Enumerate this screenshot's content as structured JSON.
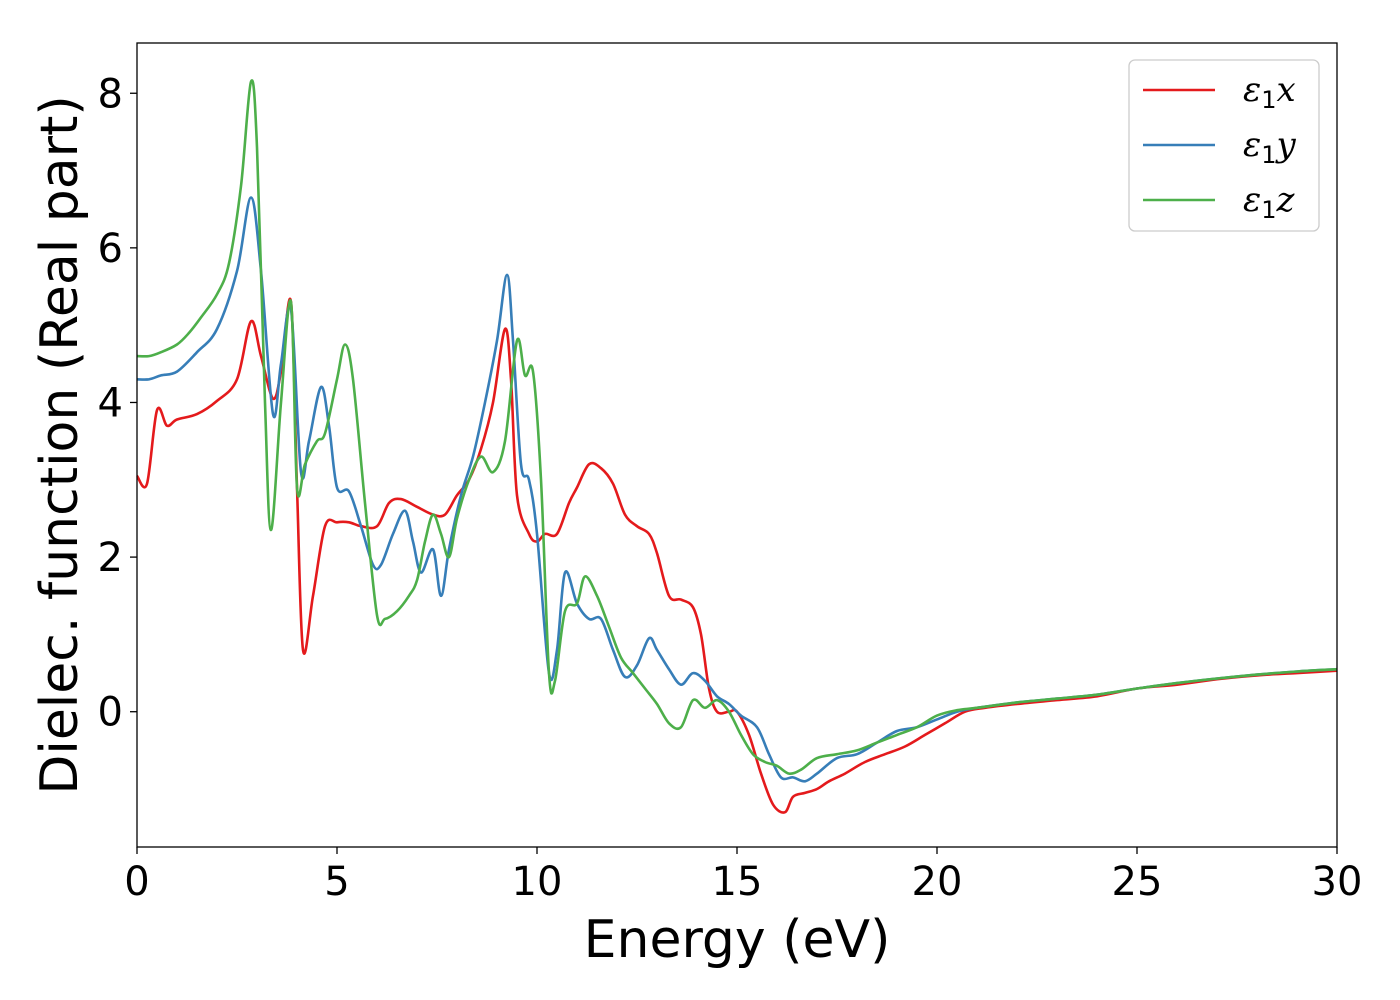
{
  "chart_data": {
    "type": "line",
    "title": "",
    "xlabel": "Energy (eV)",
    "ylabel": "Dielec. function (Real part)",
    "xlim": [
      0,
      30
    ],
    "ylim": [
      -1.75,
      8.65
    ],
    "xticks": [
      0,
      5,
      10,
      15,
      20,
      25,
      30
    ],
    "xtick_labels": [
      "0",
      "5",
      "10",
      "15",
      "20",
      "25",
      "30"
    ],
    "yticks": [
      0,
      2,
      4,
      6,
      8
    ],
    "ytick_labels": [
      "0",
      "2",
      "4",
      "6",
      "8"
    ],
    "grid": false,
    "legend_position": "top-right",
    "series": [
      {
        "name": "ε1x",
        "legend_symbol": "ε",
        "legend_sub": "1",
        "legend_axis": "x",
        "color": "#e41a1c",
        "x": [
          0,
          0.25,
          0.5,
          0.75,
          1.0,
          1.5,
          2.0,
          2.5,
          2.85,
          3.1,
          3.4,
          3.6,
          3.85,
          4.0,
          4.15,
          4.4,
          4.7,
          5.0,
          5.3,
          5.6,
          6.0,
          6.3,
          6.6,
          7.0,
          7.4,
          7.7,
          8.0,
          8.3,
          8.6,
          8.9,
          9.2,
          9.35,
          9.5,
          9.8,
          10.0,
          10.2,
          10.5,
          10.8,
          11.0,
          11.3,
          11.6,
          11.9,
          12.2,
          12.5,
          12.8,
          13.0,
          13.3,
          13.6,
          13.9,
          14.1,
          14.3,
          14.5,
          14.8,
          15.0,
          15.3,
          15.6,
          15.9,
          16.2,
          16.4,
          16.7,
          17.0,
          17.3,
          17.7,
          18.2,
          18.7,
          19.2,
          19.7,
          20.2,
          20.7,
          21.2,
          22.0,
          23.0,
          24.0,
          25.0,
          26.0,
          27.0,
          28.0,
          29.0,
          30.0
        ],
        "values": [
          3.05,
          2.95,
          3.9,
          3.7,
          3.78,
          3.85,
          4.02,
          4.3,
          5.05,
          4.6,
          4.05,
          4.4,
          5.3,
          2.9,
          0.8,
          1.5,
          2.4,
          2.45,
          2.45,
          2.4,
          2.4,
          2.7,
          2.75,
          2.65,
          2.55,
          2.55,
          2.8,
          3.0,
          3.4,
          4.0,
          4.95,
          4.3,
          2.8,
          2.3,
          2.2,
          2.3,
          2.3,
          2.7,
          2.9,
          3.2,
          3.15,
          2.95,
          2.55,
          2.4,
          2.3,
          2.05,
          1.5,
          1.45,
          1.35,
          1.0,
          0.3,
          0.0,
          0.0,
          0.0,
          -0.3,
          -0.8,
          -1.2,
          -1.3,
          -1.1,
          -1.05,
          -1.0,
          -0.9,
          -0.8,
          -0.65,
          -0.55,
          -0.45,
          -0.3,
          -0.15,
          0.0,
          0.05,
          0.1,
          0.15,
          0.2,
          0.3,
          0.35,
          0.42,
          0.47,
          0.5,
          0.53
        ]
      },
      {
        "name": "ε1y",
        "legend_symbol": "ε",
        "legend_sub": "1",
        "legend_axis": "y",
        "color": "#377eb8",
        "x": [
          0,
          0.3,
          0.6,
          1.0,
          1.5,
          2.0,
          2.5,
          2.85,
          3.1,
          3.4,
          3.6,
          3.85,
          4.1,
          4.3,
          4.6,
          4.8,
          5.0,
          5.3,
          5.6,
          5.9,
          6.1,
          6.4,
          6.7,
          6.9,
          7.1,
          7.4,
          7.6,
          7.8,
          8.1,
          8.4,
          8.7,
          9.0,
          9.25,
          9.4,
          9.6,
          9.8,
          10.0,
          10.3,
          10.5,
          10.7,
          11.0,
          11.3,
          11.6,
          11.9,
          12.2,
          12.5,
          12.8,
          13.0,
          13.3,
          13.6,
          13.9,
          14.2,
          14.5,
          14.8,
          15.1,
          15.5,
          15.8,
          16.1,
          16.4,
          16.7,
          17.0,
          17.5,
          18.0,
          18.5,
          19.0,
          19.5,
          20.0,
          20.5,
          21.0,
          22.0,
          23.0,
          24.0,
          25.0,
          26.0,
          27.0,
          28.0,
          29.0,
          30.0
        ],
        "values": [
          4.3,
          4.3,
          4.35,
          4.4,
          4.65,
          4.95,
          5.7,
          6.65,
          5.7,
          3.85,
          4.5,
          5.2,
          3.1,
          3.5,
          4.2,
          3.7,
          2.9,
          2.85,
          2.4,
          1.9,
          1.9,
          2.3,
          2.6,
          2.2,
          1.8,
          2.1,
          1.5,
          2.1,
          2.8,
          3.3,
          4.0,
          4.8,
          5.65,
          4.8,
          3.2,
          3.0,
          2.3,
          0.5,
          0.8,
          1.8,
          1.4,
          1.2,
          1.2,
          0.8,
          0.45,
          0.6,
          0.95,
          0.8,
          0.55,
          0.35,
          0.5,
          0.4,
          0.2,
          0.1,
          -0.05,
          -0.2,
          -0.55,
          -0.85,
          -0.85,
          -0.9,
          -0.8,
          -0.6,
          -0.55,
          -0.4,
          -0.25,
          -0.2,
          -0.1,
          0.0,
          0.05,
          0.12,
          0.17,
          0.22,
          0.3,
          0.37,
          0.43,
          0.48,
          0.52,
          0.55
        ]
      },
      {
        "name": "ε1z",
        "legend_symbol": "ε",
        "legend_sub": "1",
        "legend_axis": "z",
        "color": "#4daf4a",
        "x": [
          0,
          0.3,
          0.6,
          1.0,
          1.3,
          1.6,
          2.0,
          2.3,
          2.6,
          2.85,
          3.0,
          3.2,
          3.35,
          3.6,
          3.85,
          4.0,
          4.2,
          4.5,
          4.7,
          5.0,
          5.2,
          5.4,
          5.7,
          6.0,
          6.2,
          6.5,
          6.8,
          7.0,
          7.2,
          7.4,
          7.6,
          7.8,
          8.0,
          8.3,
          8.6,
          8.9,
          9.2,
          9.5,
          9.7,
          9.9,
          10.1,
          10.3,
          10.45,
          10.7,
          11.0,
          11.2,
          11.5,
          11.8,
          12.1,
          12.4,
          12.7,
          13.0,
          13.3,
          13.6,
          13.9,
          14.2,
          14.5,
          14.8,
          15.1,
          15.4,
          15.7,
          16.0,
          16.3,
          16.6,
          17.0,
          17.5,
          18.0,
          18.5,
          19.0,
          19.5,
          20.0,
          20.5,
          21.0,
          22.0,
          23.0,
          24.0,
          25.0,
          26.0,
          27.0,
          28.0,
          29.0,
          30.0
        ],
        "values": [
          4.6,
          4.6,
          4.65,
          4.75,
          4.9,
          5.1,
          5.4,
          5.8,
          6.8,
          8.15,
          7.3,
          4.0,
          2.35,
          4.0,
          5.3,
          2.9,
          3.2,
          3.5,
          3.6,
          4.3,
          4.75,
          4.3,
          2.7,
          1.25,
          1.2,
          1.3,
          1.5,
          1.7,
          2.2,
          2.55,
          2.3,
          2.0,
          2.5,
          3.0,
          3.3,
          3.1,
          3.5,
          4.8,
          4.35,
          4.4,
          3.0,
          0.5,
          0.4,
          1.3,
          1.4,
          1.75,
          1.5,
          1.1,
          0.7,
          0.5,
          0.3,
          0.1,
          -0.15,
          -0.2,
          0.15,
          0.05,
          0.15,
          0.0,
          -0.3,
          -0.55,
          -0.65,
          -0.7,
          -0.8,
          -0.75,
          -0.6,
          -0.55,
          -0.5,
          -0.4,
          -0.3,
          -0.2,
          -0.05,
          0.02,
          0.05,
          0.12,
          0.17,
          0.22,
          0.3,
          0.37,
          0.43,
          0.48,
          0.52,
          0.55
        ]
      }
    ]
  }
}
